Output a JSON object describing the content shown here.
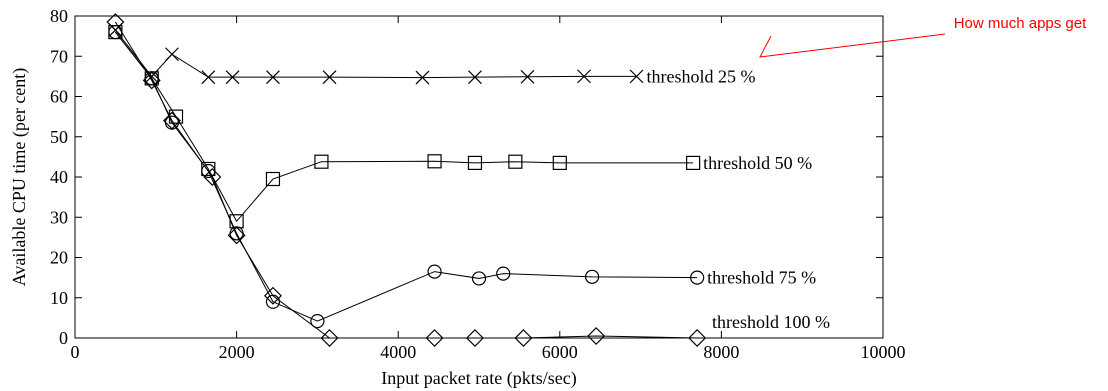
{
  "chart_data": {
    "type": "line",
    "xlabel": "Input packet rate (pkts/sec)",
    "ylabel": "Available CPU time (per cent)",
    "xlim": [
      0,
      10000
    ],
    "ylim": [
      0,
      80
    ],
    "xticks": [
      0,
      2000,
      4000,
      6000,
      8000,
      10000
    ],
    "yticks": [
      0,
      10,
      20,
      30,
      40,
      50,
      60,
      70,
      80
    ],
    "xtick_labels": [
      "0",
      "2000",
      "4000",
      "6000",
      "8000",
      "10000"
    ],
    "ytick_labels": [
      "0",
      "10",
      "20",
      "30",
      "40",
      "50",
      "60",
      "70",
      "80"
    ],
    "grid": false,
    "series": [
      {
        "name": "threshold  25 %",
        "marker": "x",
        "x": [
          500,
          950,
          1200,
          1650,
          1950,
          2450,
          3150,
          4300,
          4950,
          5600,
          6300,
          6950
        ],
        "y": [
          76.5,
          65,
          70.5,
          64.8,
          64.8,
          64.8,
          64.8,
          64.7,
          64.8,
          64.9,
          65,
          65
        ]
      },
      {
        "name": "threshold  50 %",
        "marker": "square",
        "x": [
          500,
          950,
          1250,
          1650,
          2000,
          2450,
          3050,
          4450,
          4950,
          5450,
          6000,
          7650
        ],
        "y": [
          76,
          64.5,
          55,
          42,
          29,
          39.5,
          43.8,
          43.9,
          43.5,
          43.8,
          43.5,
          43.5
        ]
      },
      {
        "name": "threshold  75 %",
        "marker": "circle",
        "x": [
          500,
          950,
          1200,
          1650,
          2000,
          2450,
          3000,
          4450,
          5000,
          5300,
          6400,
          7700
        ],
        "y": [
          76,
          64.5,
          53.5,
          41.5,
          26,
          9,
          4.2,
          16.5,
          14.8,
          16,
          15.2,
          15
        ]
      },
      {
        "name": "threshold  100 %",
        "marker": "diamond",
        "x": [
          500,
          950,
          1200,
          1700,
          2000,
          2450,
          3150,
          4450,
          4950,
          5550,
          6450,
          7700
        ],
        "y": [
          78.5,
          64,
          54,
          40,
          25.5,
          10.5,
          0,
          0,
          0,
          0,
          0.5,
          0
        ]
      }
    ],
    "annotation": {
      "text": "How much apps get",
      "color": "#ff0000"
    }
  }
}
